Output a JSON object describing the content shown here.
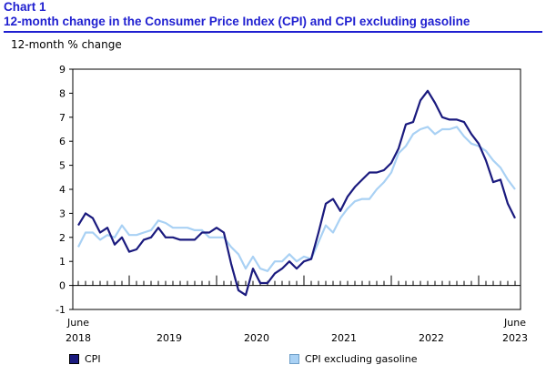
{
  "header": {
    "chart_number": "Chart 1",
    "title": "12-month change in the Consumer Price Index (CPI) and CPI excluding gasoline"
  },
  "colors": {
    "title": "#1f1fd0",
    "cpi": "#1a1a7e",
    "cpi_ex_gas": "#a9d1f4"
  },
  "chart_data": {
    "type": "line",
    "title": "12-month change in the Consumer Price Index (CPI) and CPI excluding gasoline",
    "ylabel": "12-month % change",
    "ylim": [
      -1,
      9
    ],
    "yticks": [
      "-1",
      "0",
      "1",
      "2",
      "3",
      "4",
      "5",
      "6",
      "7",
      "8",
      "9"
    ],
    "grid": false,
    "legend_position": "bottom",
    "x_start_label": {
      "month": "June",
      "year": "2018"
    },
    "x_end_label": {
      "month": "June",
      "year": "2023"
    },
    "year_labels": [
      "2019",
      "2020",
      "2021",
      "2022"
    ],
    "x": [
      "2018-06",
      "2018-07",
      "2018-08",
      "2018-09",
      "2018-10",
      "2018-11",
      "2018-12",
      "2019-01",
      "2019-02",
      "2019-03",
      "2019-04",
      "2019-05",
      "2019-06",
      "2019-07",
      "2019-08",
      "2019-09",
      "2019-10",
      "2019-11",
      "2019-12",
      "2020-01",
      "2020-02",
      "2020-03",
      "2020-04",
      "2020-05",
      "2020-06",
      "2020-07",
      "2020-08",
      "2020-09",
      "2020-10",
      "2020-11",
      "2020-12",
      "2021-01",
      "2021-02",
      "2021-03",
      "2021-04",
      "2021-05",
      "2021-06",
      "2021-07",
      "2021-08",
      "2021-09",
      "2021-10",
      "2021-11",
      "2021-12",
      "2022-01",
      "2022-02",
      "2022-03",
      "2022-04",
      "2022-05",
      "2022-06",
      "2022-07",
      "2022-08",
      "2022-09",
      "2022-10",
      "2022-11",
      "2022-12",
      "2023-01",
      "2023-02",
      "2023-03",
      "2023-04",
      "2023-05",
      "2023-06"
    ],
    "series": [
      {
        "name": "CPI",
        "values": [
          2.5,
          3.0,
          2.8,
          2.2,
          2.4,
          1.7,
          2.0,
          1.4,
          1.5,
          1.9,
          2.0,
          2.4,
          2.0,
          2.0,
          1.9,
          1.9,
          1.9,
          2.2,
          2.2,
          2.4,
          2.2,
          0.9,
          -0.2,
          -0.4,
          0.7,
          0.1,
          0.1,
          0.5,
          0.7,
          1.0,
          0.7,
          1.0,
          1.1,
          2.2,
          3.4,
          3.6,
          3.1,
          3.7,
          4.1,
          4.4,
          4.7,
          4.7,
          4.8,
          5.1,
          5.7,
          6.7,
          6.8,
          7.7,
          8.1,
          7.6,
          7.0,
          6.9,
          6.9,
          6.8,
          6.3,
          5.9,
          5.2,
          4.3,
          4.4,
          3.4,
          2.8
        ]
      },
      {
        "name": "CPI excluding gasoline",
        "values": [
          1.6,
          2.2,
          2.2,
          1.9,
          2.1,
          2.0,
          2.5,
          2.1,
          2.1,
          2.2,
          2.3,
          2.7,
          2.6,
          2.4,
          2.4,
          2.4,
          2.3,
          2.3,
          2.0,
          2.0,
          2.0,
          1.6,
          1.3,
          0.7,
          1.2,
          0.7,
          0.6,
          1.0,
          1.0,
          1.3,
          1.0,
          1.2,
          1.1,
          1.8,
          2.5,
          2.2,
          2.8,
          3.2,
          3.5,
          3.6,
          3.6,
          4.0,
          4.3,
          4.7,
          5.5,
          5.8,
          6.3,
          6.5,
          6.6,
          6.3,
          6.5,
          6.5,
          6.6,
          6.2,
          5.9,
          5.8,
          5.6,
          5.2,
          4.9,
          4.4,
          4.0
        ]
      }
    ]
  }
}
